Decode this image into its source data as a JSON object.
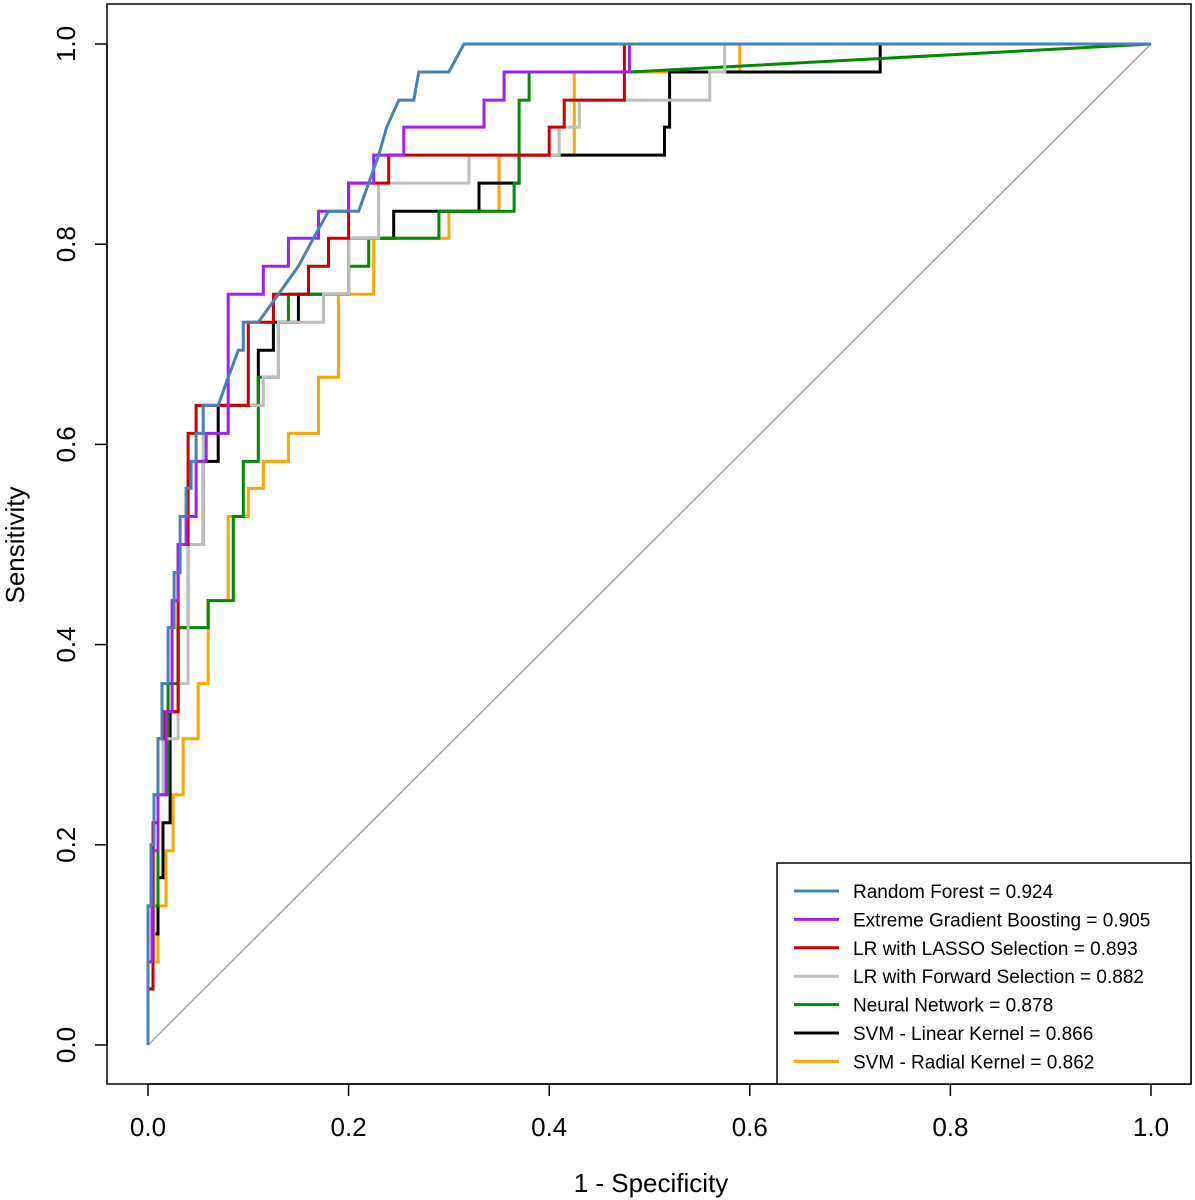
{
  "chart_data": {
    "type": "line",
    "title": "",
    "xlabel": "1 - Specificity",
    "ylabel": "Sensitivity",
    "xlim": [
      0.0,
      1.0
    ],
    "ylim": [
      0.0,
      1.0
    ],
    "xticks": [
      "0.0",
      "0.2",
      "0.4",
      "0.6",
      "0.8",
      "1.0"
    ],
    "yticks": [
      "0.0",
      "0.2",
      "0.4",
      "0.6",
      "0.8",
      "1.0"
    ],
    "grid": false,
    "legend_position": "bottom-right",
    "reference_line": {
      "x": [
        0,
        1
      ],
      "y": [
        0,
        1
      ],
      "color": "#a0a0a0"
    },
    "series": [
      {
        "name": "Random Forest = 0.924",
        "color": "#4682b4",
        "x": [
          0,
          0,
          0.003,
          0.003,
          0.006,
          0.006,
          0.01,
          0.01,
          0.014,
          0.014,
          0.02,
          0.02,
          0.026,
          0.026,
          0.032,
          0.032,
          0.038,
          0.038,
          0.043,
          0.043,
          0.048,
          0.048,
          0.055,
          0.055,
          0.07,
          0.08,
          0.08,
          0.09,
          0.095,
          0.095,
          0.1,
          0.1,
          0.11,
          0.13,
          0.13,
          0.15,
          0.165,
          0.18,
          0.2,
          0.21,
          0.22,
          0.23,
          0.238,
          0.25,
          0.265,
          0.27,
          0.29,
          0.3,
          0.315,
          0.335,
          0.48,
          0.6,
          0.75,
          1.0
        ],
        "y": [
          0,
          0.139,
          0.139,
          0.2,
          0.2,
          0.25,
          0.25,
          0.306,
          0.306,
          0.361,
          0.361,
          0.417,
          0.417,
          0.472,
          0.472,
          0.528,
          0.528,
          0.556,
          0.556,
          0.583,
          0.583,
          0.611,
          0.611,
          0.639,
          0.639,
          0.667,
          0.667,
          0.694,
          0.694,
          0.722,
          0.722,
          0.722,
          0.722,
          0.75,
          0.75,
          0.778,
          0.806,
          0.833,
          0.833,
          0.833,
          0.861,
          0.889,
          0.917,
          0.944,
          0.944,
          0.972,
          0.972,
          0.972,
          1.0,
          1.0,
          1.0,
          1.0,
          1.0,
          1.0
        ]
      },
      {
        "name": "Extreme Gradient Boosting = 0.905",
        "color": "#a020f0",
        "x": [
          0,
          0,
          0.004,
          0.004,
          0.01,
          0.01,
          0.018,
          0.018,
          0.024,
          0.024,
          0.03,
          0.03,
          0.038,
          0.038,
          0.048,
          0.048,
          0.058,
          0.058,
          0.08,
          0.08,
          0.115,
          0.115,
          0.14,
          0.14,
          0.17,
          0.17,
          0.2,
          0.2,
          0.225,
          0.225,
          0.255,
          0.255,
          0.335,
          0.335,
          0.355,
          0.355,
          0.42,
          0.42,
          0.48,
          0.48,
          0.57,
          1.0
        ],
        "y": [
          0,
          0.083,
          0.083,
          0.194,
          0.194,
          0.25,
          0.25,
          0.333,
          0.333,
          0.444,
          0.444,
          0.5,
          0.5,
          0.528,
          0.528,
          0.583,
          0.583,
          0.611,
          0.611,
          0.75,
          0.75,
          0.778,
          0.778,
          0.806,
          0.806,
          0.833,
          0.833,
          0.861,
          0.861,
          0.889,
          0.889,
          0.917,
          0.917,
          0.944,
          0.944,
          0.972,
          0.972,
          0.972,
          0.972,
          1.0,
          1.0,
          1.0
        ]
      },
      {
        "name": "LR with LASSO Selection = 0.893",
        "color": "#cd0000",
        "x": [
          0,
          0,
          0.005,
          0.005,
          0.01,
          0.01,
          0.016,
          0.016,
          0.03,
          0.03,
          0.04,
          0.04,
          0.048,
          0.048,
          0.06,
          0.06,
          0.1,
          0.1,
          0.125,
          0.125,
          0.14,
          0.14,
          0.16,
          0.16,
          0.18,
          0.18,
          0.2,
          0.2,
          0.24,
          0.24,
          0.3,
          0.3,
          0.4,
          0.4,
          0.415,
          0.415,
          0.475,
          0.475,
          0.6,
          1.0
        ],
        "y": [
          0,
          0.056,
          0.056,
          0.222,
          0.222,
          0.306,
          0.306,
          0.333,
          0.333,
          0.5,
          0.5,
          0.611,
          0.611,
          0.639,
          0.639,
          0.639,
          0.639,
          0.722,
          0.722,
          0.75,
          0.75,
          0.75,
          0.75,
          0.778,
          0.778,
          0.806,
          0.806,
          0.861,
          0.861,
          0.889,
          0.889,
          0.889,
          0.889,
          0.917,
          0.917,
          0.944,
          0.944,
          1.0,
          1.0,
          1.0
        ]
      },
      {
        "name": "LR with Forward Selection = 0.882",
        "color": "#bebebe",
        "x": [
          0,
          0,
          0.006,
          0.006,
          0.015,
          0.015,
          0.03,
          0.03,
          0.04,
          0.04,
          0.055,
          0.055,
          0.115,
          0.115,
          0.13,
          0.13,
          0.175,
          0.175,
          0.2,
          0.2,
          0.23,
          0.23,
          0.32,
          0.32,
          0.41,
          0.41,
          0.43,
          0.43,
          0.56,
          0.56,
          0.575,
          0.575,
          1.0
        ],
        "y": [
          0,
          0.083,
          0.083,
          0.25,
          0.25,
          0.306,
          0.306,
          0.361,
          0.361,
          0.5,
          0.5,
          0.639,
          0.639,
          0.667,
          0.667,
          0.722,
          0.722,
          0.75,
          0.75,
          0.806,
          0.806,
          0.861,
          0.861,
          0.889,
          0.889,
          0.917,
          0.917,
          0.944,
          0.944,
          0.972,
          0.972,
          1.0,
          1.0
        ]
      },
      {
        "name": "Neural Network = 0.878",
        "color": "#008b00",
        "x": [
          0,
          0,
          0.01,
          0.01,
          0.02,
          0.02,
          0.03,
          0.03,
          0.06,
          0.06,
          0.075,
          0.075,
          0.085,
          0.085,
          0.095,
          0.095,
          0.11,
          0.11,
          0.13,
          0.13,
          0.14,
          0.14,
          0.2,
          0.2,
          0.22,
          0.22,
          0.25,
          0.25,
          0.29,
          0.29,
          0.365,
          0.365,
          0.37,
          0.37,
          0.38,
          0.38,
          0.48,
          1.0
        ],
        "y": [
          0,
          0.139,
          0.139,
          0.25,
          0.25,
          0.361,
          0.361,
          0.417,
          0.417,
          0.444,
          0.444,
          0.444,
          0.444,
          0.528,
          0.528,
          0.583,
          0.583,
          0.667,
          0.667,
          0.722,
          0.722,
          0.75,
          0.75,
          0.778,
          0.778,
          0.806,
          0.806,
          0.806,
          0.806,
          0.833,
          0.833,
          0.861,
          0.861,
          0.944,
          0.944,
          0.972,
          0.972,
          1.0
        ]
      },
      {
        "name": "SVM - Linear Kernel = 0.866",
        "color": "#000000",
        "x": [
          0,
          0,
          0.005,
          0.005,
          0.01,
          0.01,
          0.015,
          0.015,
          0.022,
          0.022,
          0.03,
          0.03,
          0.04,
          0.04,
          0.055,
          0.055,
          0.07,
          0.07,
          0.11,
          0.11,
          0.125,
          0.125,
          0.15,
          0.15,
          0.2,
          0.2,
          0.245,
          0.245,
          0.33,
          0.33,
          0.37,
          0.37,
          0.515,
          0.515,
          0.52,
          0.52,
          0.575,
          0.575,
          0.73,
          0.73,
          1.0
        ],
        "y": [
          0,
          0.056,
          0.056,
          0.111,
          0.111,
          0.167,
          0.167,
          0.222,
          0.222,
          0.333,
          0.333,
          0.417,
          0.417,
          0.5,
          0.5,
          0.583,
          0.583,
          0.639,
          0.639,
          0.694,
          0.694,
          0.722,
          0.722,
          0.75,
          0.75,
          0.806,
          0.806,
          0.833,
          0.833,
          0.861,
          0.861,
          0.889,
          0.889,
          0.917,
          0.917,
          0.972,
          0.972,
          0.972,
          0.972,
          1.0,
          1.0
        ]
      },
      {
        "name": "SVM - Radial Kernel = 0.862",
        "color": "#ffa500",
        "x": [
          0,
          0,
          0.01,
          0.01,
          0.018,
          0.018,
          0.025,
          0.025,
          0.035,
          0.035,
          0.05,
          0.05,
          0.06,
          0.06,
          0.08,
          0.08,
          0.1,
          0.1,
          0.115,
          0.115,
          0.14,
          0.14,
          0.17,
          0.17,
          0.19,
          0.19,
          0.225,
          0.225,
          0.3,
          0.3,
          0.35,
          0.35,
          0.425,
          0.425,
          0.59,
          0.59,
          1.0
        ],
        "y": [
          0,
          0.083,
          0.083,
          0.139,
          0.139,
          0.194,
          0.194,
          0.25,
          0.25,
          0.306,
          0.306,
          0.361,
          0.361,
          0.444,
          0.444,
          0.528,
          0.528,
          0.556,
          0.556,
          0.583,
          0.583,
          0.611,
          0.611,
          0.667,
          0.667,
          0.75,
          0.75,
          0.806,
          0.806,
          0.833,
          0.833,
          0.889,
          0.889,
          0.972,
          0.972,
          1.0,
          1.0
        ]
      }
    ]
  }
}
